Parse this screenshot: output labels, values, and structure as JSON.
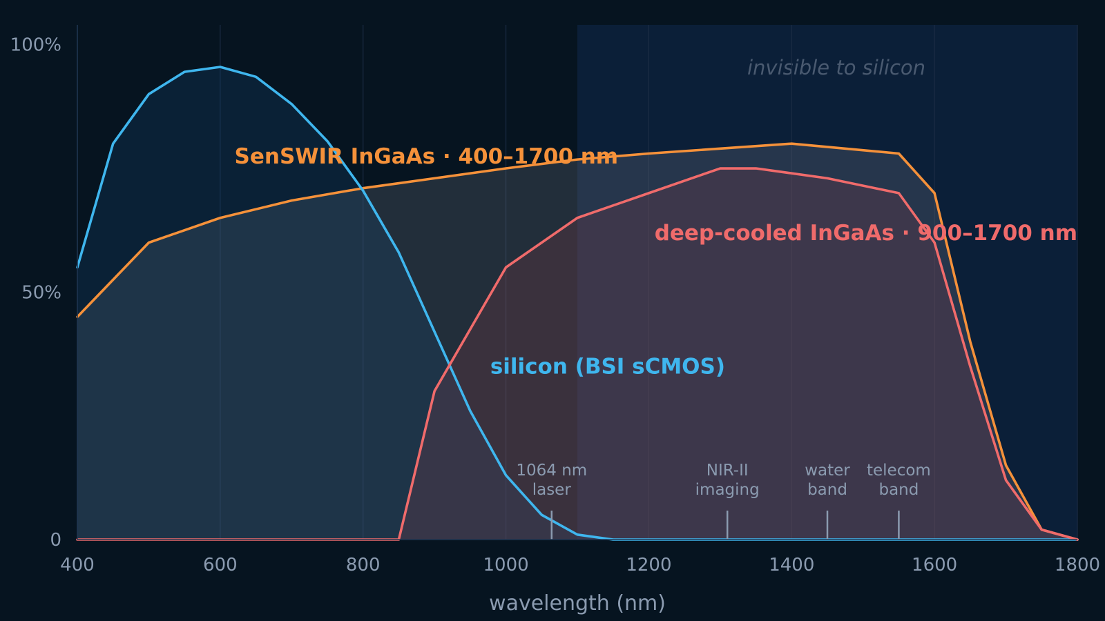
{
  "chart_data": {
    "type": "line",
    "xlabel": "wavelength (nm)",
    "ylabel": "",
    "xlim": [
      400,
      1800
    ],
    "ylim": [
      0,
      104
    ],
    "x_ticks": [
      {
        "value": 400,
        "label": "400"
      },
      {
        "value": 600,
        "label": "600"
      },
      {
        "value": 800,
        "label": "800"
      },
      {
        "value": 1000,
        "label": "1000"
      },
      {
        "value": 1200,
        "label": "1200"
      },
      {
        "value": 1400,
        "label": "1400"
      },
      {
        "value": 1600,
        "label": "1600"
      },
      {
        "value": 1800,
        "label": "1800"
      }
    ],
    "y_ticks": [
      {
        "value": 0,
        "label": "0"
      },
      {
        "value": 50,
        "label": "50%"
      },
      {
        "value": 100,
        "label": "100%"
      }
    ],
    "grid": true,
    "shaded_region": {
      "from": 1100,
      "to": 1800,
      "label": "invisible to silicon"
    },
    "markers": [
      {
        "x": 1064,
        "lines": [
          "1064 nm",
          "laser"
        ]
      },
      {
        "x": 1310,
        "lines": [
          "NIR-II",
          "imaging"
        ]
      },
      {
        "x": 1450,
        "lines": [
          "water",
          "band"
        ]
      },
      {
        "x": 1550,
        "lines": [
          "telecom",
          "band"
        ]
      }
    ],
    "series": [
      {
        "id": "senswir",
        "name": "SenSWIR InGaAs · 400–1700 nm",
        "color": "#f5913a",
        "fill": "rgba(120,125,135,0.25)",
        "label_at": {
          "x": 620,
          "y": 76
        },
        "points": [
          [
            400,
            45
          ],
          [
            500,
            60
          ],
          [
            600,
            65
          ],
          [
            700,
            68.5
          ],
          [
            800,
            71
          ],
          [
            850,
            72
          ],
          [
            900,
            73
          ],
          [
            1000,
            75
          ],
          [
            1100,
            76.8
          ],
          [
            1200,
            78
          ],
          [
            1300,
            79
          ],
          [
            1400,
            80
          ],
          [
            1550,
            78
          ],
          [
            1600,
            70
          ],
          [
            1650,
            40
          ],
          [
            1700,
            15
          ],
          [
            1750,
            2
          ],
          [
            1800,
            0
          ]
        ]
      },
      {
        "id": "silicon",
        "name": "silicon (BSI sCMOS)",
        "color": "#3fb6ee",
        "fill": "rgba(20,70,110,0.28)",
        "label_at": {
          "x": 978,
          "y": 33.5
        },
        "points": [
          [
            400,
            55
          ],
          [
            450,
            80
          ],
          [
            500,
            90
          ],
          [
            550,
            94.5
          ],
          [
            600,
            95.5
          ],
          [
            650,
            93.5
          ],
          [
            700,
            88
          ],
          [
            750,
            80.5
          ],
          [
            800,
            70.5
          ],
          [
            850,
            58
          ],
          [
            900,
            42
          ],
          [
            950,
            26
          ],
          [
            1000,
            13
          ],
          [
            1050,
            5
          ],
          [
            1100,
            1
          ],
          [
            1150,
            0
          ],
          [
            1800,
            0
          ]
        ]
      },
      {
        "id": "deepcooled",
        "name": "deep-cooled InGaAs · 900–1700 nm",
        "color": "#f06b6b",
        "fill": "rgba(130,60,70,0.25)",
        "label_at": {
          "x": 1208,
          "y": 60.5
        },
        "points": [
          [
            400,
            0
          ],
          [
            850,
            0
          ],
          [
            900,
            30
          ],
          [
            1000,
            55
          ],
          [
            1100,
            65
          ],
          [
            1200,
            70
          ],
          [
            1300,
            75
          ],
          [
            1350,
            75
          ],
          [
            1450,
            73
          ],
          [
            1550,
            70
          ],
          [
            1600,
            60
          ],
          [
            1650,
            35
          ],
          [
            1700,
            12
          ],
          [
            1750,
            2
          ],
          [
            1800,
            0
          ]
        ]
      }
    ]
  }
}
